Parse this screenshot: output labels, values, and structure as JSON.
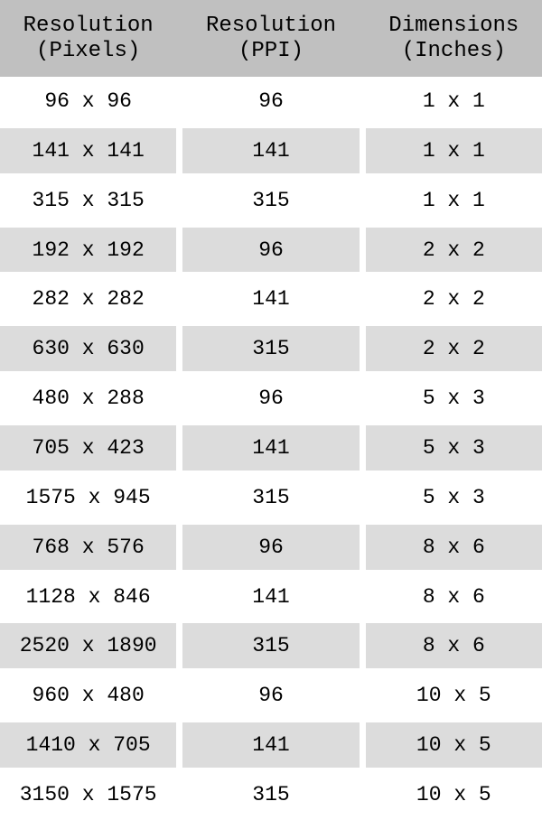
{
  "chart_data": {
    "type": "table",
    "columns": [
      {
        "line1": "Resolution",
        "line2": "(Pixels)"
      },
      {
        "line1": "Resolution",
        "line2": "(PPI)"
      },
      {
        "line1": "Dimensions",
        "line2": "(Inches)"
      }
    ],
    "rows": [
      [
        "96 x 96",
        "96",
        "1 x 1"
      ],
      [
        "141 x 141",
        "141",
        "1 x 1"
      ],
      [
        "315 x 315",
        "315",
        "1 x 1"
      ],
      [
        "192 x 192",
        "96",
        "2 x 2"
      ],
      [
        "282 x 282",
        "141",
        "2 x 2"
      ],
      [
        "630 x 630",
        "315",
        "2 x 2"
      ],
      [
        "480 x 288",
        "96",
        "5 x 3"
      ],
      [
        "705 x 423",
        "141",
        "5 x 3"
      ],
      [
        "1575 x 945",
        "315",
        "5 x 3"
      ],
      [
        "768 x 576",
        "96",
        "8 x 6"
      ],
      [
        "1128 x 846",
        "141",
        "8 x 6"
      ],
      [
        "2520 x 1890",
        "315",
        "8 x 6"
      ],
      [
        "960 x 480",
        "96",
        "10 x 5"
      ],
      [
        "1410 x 705",
        "141",
        "10 x 5"
      ],
      [
        "3150 x 1575",
        "315",
        "10 x 5"
      ]
    ]
  },
  "colors": {
    "header_bg": "#c0c0c0",
    "stripe_bg": "#dcdcdc",
    "row_bg": "#ffffff",
    "text": "#000000"
  }
}
